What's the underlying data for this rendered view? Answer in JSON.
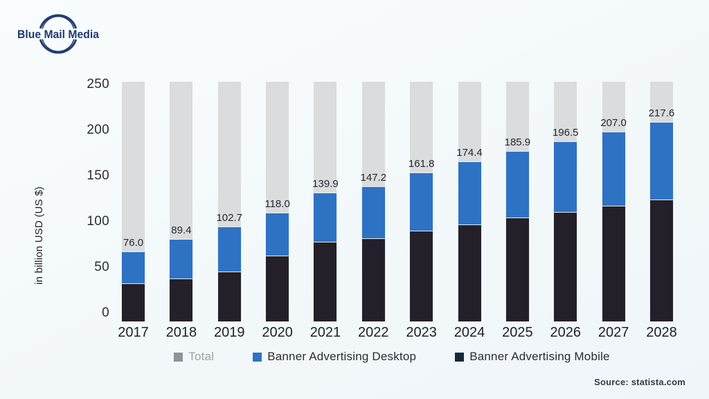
{
  "logo": {
    "text": "Blue Mail Media",
    "color": "#203c74"
  },
  "colors": {
    "background": "#f4f9fb",
    "backdrop_gray": "#dadcde",
    "desktop_blue": "#2e72c4",
    "mobile_dark": "#24202a",
    "legend_total_swatch": "#8e9299",
    "legend_mobile_swatch": "#15293e",
    "axis_text": "#2c2c35"
  },
  "chart": {
    "y_axis_title": "in billion USD (US $)",
    "legend": [
      {
        "label": "Total",
        "swatch": "#8e9299",
        "muted": true
      },
      {
        "label": "Banner Advertising Desktop",
        "swatch": "#2e72c4",
        "muted": false
      },
      {
        "label": "Banner Advertising Mobile",
        "swatch": "#15293e",
        "muted": false
      }
    ],
    "source": "Source: statista.com"
  },
  "chart_data": {
    "type": "bar",
    "stacked": true,
    "title": "",
    "xlabel": "",
    "ylabel": "in billion USD (US $)",
    "categories": [
      2017,
      2018,
      2019,
      2020,
      2021,
      2022,
      2023,
      2024,
      2025,
      2026,
      2027,
      2028
    ],
    "series": [
      {
        "name": "Banner Advertising Mobile",
        "color": "#24202a",
        "values": [
          40.8,
          46.4,
          53.9,
          71.1,
          86.0,
          89.8,
          98.4,
          105.2,
          112.9,
          119.0,
          126.1,
          132.9
        ]
      },
      {
        "name": "Banner Advertising Desktop",
        "color": "#2e72c4",
        "values": [
          35.2,
          43.0,
          48.8,
          46.9,
          53.9,
          57.4,
          63.4,
          69.2,
          73.0,
          77.5,
          80.9,
          84.7
        ]
      }
    ],
    "totals": [
      76.0,
      89.4,
      102.7,
      118.0,
      139.9,
      147.2,
      161.8,
      174.4,
      185.9,
      196.5,
      207.0,
      217.6
    ],
    "total_labels": [
      "76.0",
      "89.4",
      "102.7",
      "118.0",
      "139.9",
      "147.2",
      "161.8",
      "174.4",
      "185.9",
      "196.5",
      "207.0",
      "217.6"
    ],
    "backdrop": {
      "name": "Total",
      "color": "#dadcde",
      "top_value": 262
    },
    "y_tick_values": [
      0,
      50,
      100,
      150,
      200,
      250
    ],
    "ylim": [
      0,
      262
    ],
    "grid": false,
    "legend_position": "bottom"
  }
}
